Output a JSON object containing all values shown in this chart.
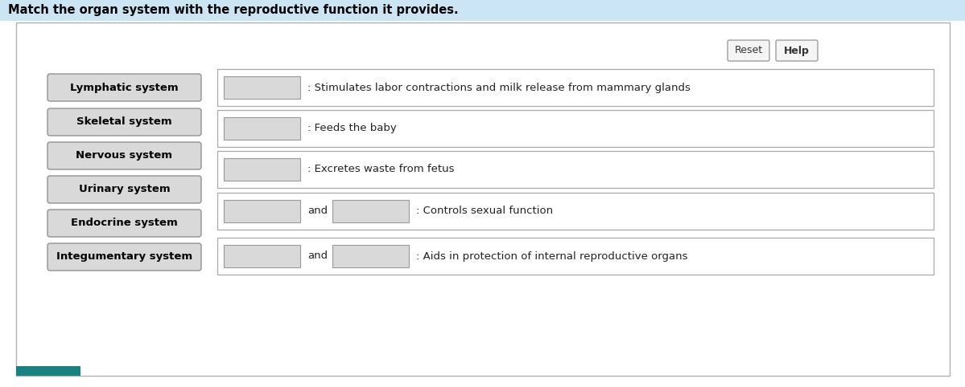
{
  "title": "Match the organ system with the reproductive function it provides.",
  "title_bg": "#cce5f5",
  "title_fontsize": 10.5,
  "bg_outer": "#ffffff",
  "bg_inner": "#ffffff",
  "content_bg": "#f8f8f8",
  "left_labels": [
    "Lymphatic system",
    "Skeletal system",
    "Nervous system",
    "Urinary system",
    "Endocrine system",
    "Integumentary system"
  ],
  "right_rows": [
    {
      "type": "single",
      "text": ": Stimulates labor contractions and milk release from mammary glands"
    },
    {
      "type": "single",
      "text": ": Feeds the baby"
    },
    {
      "type": "single",
      "text": ": Excretes waste from fetus"
    },
    {
      "type": "double",
      "text": ": Controls sexual function"
    },
    {
      "type": "double",
      "text": ": Aids in protection of internal reproductive organs"
    }
  ],
  "reset_label": "Reset",
  "help_label": "Help",
  "fig_width": 11.99,
  "fig_height": 4.82,
  "dpi": 100
}
